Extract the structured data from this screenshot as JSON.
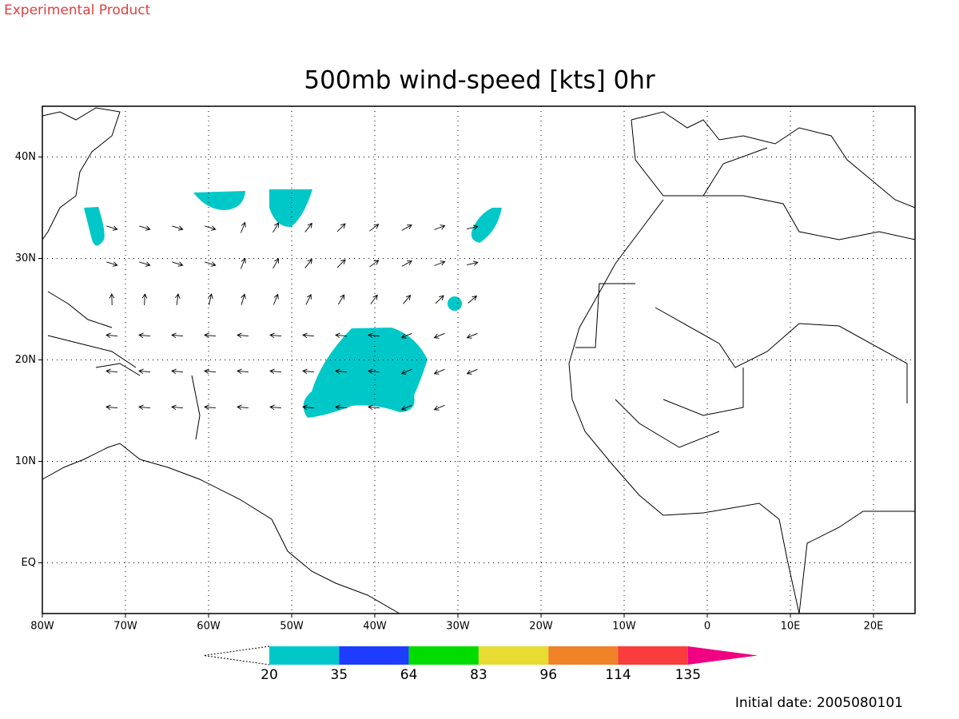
{
  "header": {
    "note": "Experimental Product"
  },
  "map": {
    "title": "500mb wind-speed [kts] 0hr",
    "xlim": [
      -80,
      25
    ],
    "ylim": [
      -5,
      45
    ],
    "xticks": [
      {
        "value": -80,
        "label": "80W"
      },
      {
        "value": -70,
        "label": "70W"
      },
      {
        "value": -60,
        "label": "60W"
      },
      {
        "value": -50,
        "label": "50W"
      },
      {
        "value": -40,
        "label": "40W"
      },
      {
        "value": -30,
        "label": "30W"
      },
      {
        "value": -20,
        "label": "20W"
      },
      {
        "value": -10,
        "label": "10W"
      },
      0,
      {
        "value": 10,
        "label": "10E"
      },
      {
        "value": 20,
        "label": "20E"
      }
    ],
    "yticks": [
      {
        "value": 0,
        "label": "EQ"
      },
      {
        "value": 10,
        "label": "10N"
      },
      {
        "value": 20,
        "label": "20N"
      },
      {
        "value": 30,
        "label": "30N"
      },
      {
        "value": 40,
        "label": "40N"
      }
    ],
    "grid": true
  },
  "colorbar": {
    "levels": [
      20,
      35,
      64,
      83,
      96,
      114,
      135
    ],
    "colors": [
      "#00c8c8",
      "#1e3cff",
      "#00dc00",
      "#e6dc32",
      "#f08228",
      "#fa3c3c",
      "#f00082"
    ]
  },
  "footer": {
    "initial_date": "Initial date: 2005080101"
  }
}
